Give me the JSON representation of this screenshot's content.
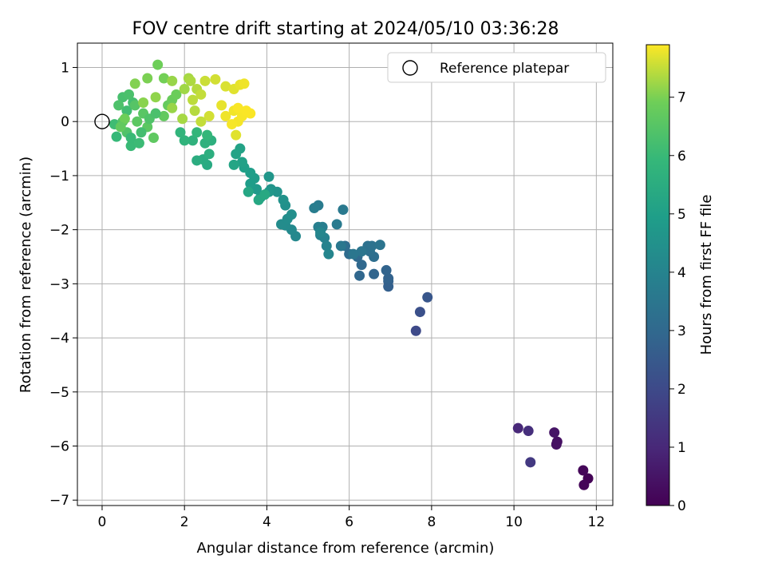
{
  "chart_data": {
    "type": "scatter",
    "title": "FOV centre drift starting at 2024/05/10 03:36:28",
    "xlabel": "Angular distance from reference (arcmin)",
    "ylabel": "Rotation from reference (arcmin)",
    "xlim": [
      -0.6,
      12.4
    ],
    "ylim": [
      -7.1,
      1.45
    ],
    "xticks": [
      0,
      2,
      4,
      6,
      8,
      10,
      12
    ],
    "yticks": [
      1,
      0,
      -1,
      -2,
      -3,
      -4,
      -5,
      -6,
      -7
    ],
    "grid": true,
    "legend": {
      "placement": "top-right",
      "entries": [
        "Reference platepar"
      ]
    },
    "reference_point": {
      "x": 0,
      "y": 0
    },
    "colorbar": {
      "label": "Hours from first FF file",
      "colormap": "viridis",
      "range": [
        0,
        7.9
      ],
      "ticks": [
        0,
        1,
        2,
        3,
        4,
        5,
        6,
        7
      ]
    },
    "points": [
      [
        11.8,
        -6.6,
        0.05
      ],
      [
        11.7,
        -6.72,
        0.1
      ],
      [
        11.68,
        -6.45,
        0.15
      ],
      [
        11.05,
        -5.92,
        0.35
      ],
      [
        11.03,
        -5.97,
        0.4
      ],
      [
        10.98,
        -5.75,
        0.5
      ],
      [
        10.1,
        -5.67,
        1.0
      ],
      [
        10.35,
        -5.72,
        1.2
      ],
      [
        10.4,
        -6.3,
        1.5
      ],
      [
        7.62,
        -3.87,
        2.0
      ],
      [
        7.72,
        -3.52,
        2.2
      ],
      [
        7.9,
        -3.25,
        2.4
      ],
      [
        6.95,
        -3.05,
        2.7
      ],
      [
        6.95,
        -2.95,
        2.75
      ],
      [
        6.95,
        -2.9,
        2.8
      ],
      [
        6.9,
        -2.75,
        2.85
      ],
      [
        6.6,
        -2.82,
        2.9
      ],
      [
        6.25,
        -2.85,
        2.95
      ],
      [
        6.3,
        -2.65,
        3.0
      ],
      [
        6.2,
        -2.5,
        3.05
      ],
      [
        6.0,
        -2.45,
        3.1
      ],
      [
        5.9,
        -2.3,
        3.15
      ],
      [
        6.6,
        -2.5,
        3.2
      ],
      [
        6.5,
        -2.4,
        3.25
      ],
      [
        6.45,
        -2.3,
        3.3
      ],
      [
        6.55,
        -2.3,
        3.35
      ],
      [
        6.75,
        -2.28,
        3.4
      ],
      [
        6.3,
        -2.4,
        3.45
      ],
      [
        6.1,
        -2.45,
        3.5
      ],
      [
        5.8,
        -2.3,
        3.55
      ],
      [
        5.85,
        -1.63,
        3.6
      ],
      [
        5.7,
        -1.9,
        3.65
      ],
      [
        5.25,
        -1.55,
        3.7
      ],
      [
        5.15,
        -1.6,
        3.75
      ],
      [
        5.35,
        -1.95,
        3.8
      ],
      [
        5.25,
        -1.95,
        3.85
      ],
      [
        5.3,
        -2.1,
        3.9
      ],
      [
        5.4,
        -2.15,
        3.95
      ],
      [
        5.45,
        -2.3,
        4.0
      ],
      [
        5.5,
        -2.45,
        4.05
      ],
      [
        5.3,
        -2.05,
        4.1
      ],
      [
        4.7,
        -2.12,
        4.15
      ],
      [
        4.6,
        -2.0,
        4.2
      ],
      [
        4.45,
        -1.92,
        4.25
      ],
      [
        4.35,
        -1.9,
        4.3
      ],
      [
        4.5,
        -1.8,
        4.35
      ],
      [
        4.6,
        -1.72,
        4.4
      ],
      [
        4.45,
        -1.55,
        4.45
      ],
      [
        4.4,
        -1.45,
        4.5
      ],
      [
        4.25,
        -1.3,
        4.55
      ],
      [
        4.1,
        -1.25,
        4.6
      ],
      [
        4.05,
        -1.02,
        4.65
      ],
      [
        4.05,
        -1.3,
        4.7
      ],
      [
        3.85,
        -1.4,
        4.75
      ],
      [
        3.75,
        -1.25,
        4.8
      ],
      [
        3.7,
        -1.05,
        4.85
      ],
      [
        3.6,
        -1.15,
        4.9
      ],
      [
        3.6,
        -0.95,
        4.95
      ],
      [
        3.45,
        -0.85,
        5.0
      ],
      [
        3.4,
        -0.75,
        5.05
      ],
      [
        3.35,
        -0.5,
        5.1
      ],
      [
        3.25,
        -0.6,
        5.15
      ],
      [
        3.2,
        -0.8,
        5.2
      ],
      [
        3.55,
        -1.3,
        5.25
      ],
      [
        3.8,
        -1.45,
        5.3
      ],
      [
        3.95,
        -1.35,
        5.35
      ],
      [
        2.55,
        -0.8,
        5.4
      ],
      [
        2.45,
        -0.7,
        5.45
      ],
      [
        2.3,
        -0.72,
        5.5
      ],
      [
        2.6,
        -0.6,
        5.55
      ],
      [
        2.65,
        -0.35,
        5.6
      ],
      [
        2.5,
        -0.4,
        5.65
      ],
      [
        2.2,
        -0.35,
        5.7
      ],
      [
        2.0,
        -0.35,
        5.75
      ],
      [
        1.9,
        -0.2,
        5.8
      ],
      [
        2.3,
        -0.2,
        5.85
      ],
      [
        2.55,
        -0.25,
        5.9
      ],
      [
        0.35,
        -0.28,
        5.95
      ],
      [
        0.7,
        -0.45,
        6.0
      ],
      [
        0.9,
        -0.4,
        6.05
      ],
      [
        0.3,
        -0.05,
        6.1
      ],
      [
        0.6,
        0.2,
        6.15
      ],
      [
        0.75,
        0.35,
        6.2
      ],
      [
        0.5,
        0.45,
        6.25
      ],
      [
        0.65,
        0.5,
        6.3
      ],
      [
        0.4,
        0.3,
        6.35
      ],
      [
        0.6,
        -0.2,
        6.4
      ],
      [
        0.5,
        0.0,
        6.45
      ],
      [
        0.8,
        0.3,
        6.5
      ],
      [
        1.0,
        0.15,
        6.55
      ],
      [
        1.1,
        -0.1,
        6.6
      ],
      [
        1.25,
        -0.3,
        6.65
      ],
      [
        1.5,
        0.1,
        6.7
      ],
      [
        1.6,
        0.3,
        6.75
      ],
      [
        1.7,
        0.4,
        6.8
      ],
      [
        1.8,
        0.5,
        6.85
      ],
      [
        1.35,
        1.05,
        6.9
      ],
      [
        1.5,
        0.8,
        6.95
      ],
      [
        1.1,
        0.8,
        7.0
      ],
      [
        0.8,
        0.7,
        7.05
      ],
      [
        1.0,
        0.35,
        7.1
      ],
      [
        1.3,
        0.45,
        7.15
      ],
      [
        1.7,
        0.75,
        7.2
      ],
      [
        2.0,
        0.6,
        7.25
      ],
      [
        2.1,
        0.8,
        7.3
      ],
      [
        2.15,
        0.75,
        7.35
      ],
      [
        2.3,
        0.6,
        7.4
      ],
      [
        2.2,
        0.4,
        7.45
      ],
      [
        2.4,
        0.5,
        7.5
      ],
      [
        2.5,
        0.75,
        7.55
      ],
      [
        2.75,
        0.78,
        7.6
      ],
      [
        3.0,
        0.65,
        7.65
      ],
      [
        3.2,
        0.6,
        7.7
      ],
      [
        3.35,
        0.68,
        7.75
      ],
      [
        3.45,
        0.7,
        7.8
      ],
      [
        3.2,
        0.2,
        7.82
      ],
      [
        3.3,
        0.0,
        7.84
      ],
      [
        3.4,
        0.1,
        7.86
      ],
      [
        3.5,
        0.2,
        7.88
      ],
      [
        3.6,
        0.15,
        7.88
      ],
      [
        3.3,
        0.25,
        7.87
      ],
      [
        3.15,
        -0.05,
        7.85
      ],
      [
        3.0,
        0.1,
        7.8
      ],
      [
        2.9,
        0.3,
        7.75
      ],
      [
        3.25,
        -0.25,
        7.7
      ],
      [
        2.6,
        0.1,
        7.6
      ],
      [
        2.4,
        0.0,
        7.5
      ],
      [
        2.25,
        0.2,
        7.4
      ],
      [
        1.95,
        0.05,
        7.3
      ],
      [
        1.7,
        0.25,
        7.2
      ],
      [
        0.55,
        0.05,
        6.9
      ],
      [
        0.45,
        -0.1,
        6.7
      ],
      [
        0.85,
        0.0,
        6.6
      ],
      [
        1.15,
        0.05,
        6.4
      ],
      [
        0.95,
        -0.2,
        6.2
      ],
      [
        0.7,
        -0.3,
        6.0
      ],
      [
        1.3,
        0.15,
        6.3
      ]
    ]
  }
}
